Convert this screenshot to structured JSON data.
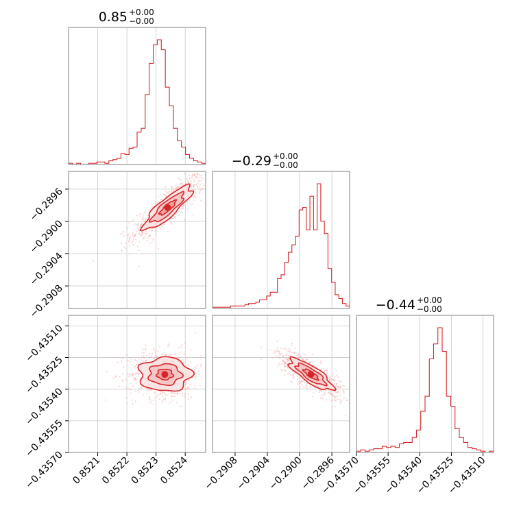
{
  "chart_data": {
    "type": "corner",
    "color": "#d62728",
    "contour_fill": "#f4b3b3",
    "grid": true,
    "parameters": [
      {
        "title": "0.85",
        "title_plus": "+0.00",
        "title_minus": "−0.00",
        "range": [
          0.852,
          0.85247
        ],
        "ticks": [
          0.8521,
          0.8522,
          0.8523,
          0.8524
        ],
        "tick_labels": [
          "0.8521",
          "0.8522",
          "0.8523",
          "0.8524"
        ],
        "hist": [
          0.01,
          0.0,
          0.01,
          0.0,
          0.0,
          0.01,
          0.01,
          0.02,
          0.02,
          0.01,
          0.03,
          0.04,
          0.05,
          0.09,
          0.08,
          0.13,
          0.14,
          0.26,
          0.29,
          0.56,
          0.81,
          0.96,
          1.0,
          0.92,
          0.62,
          0.47,
          0.29,
          0.19,
          0.14,
          0.08,
          0.05,
          0.03,
          0.02,
          0.01
        ]
      },
      {
        "title": "−0.29",
        "title_plus": "+0.00",
        "title_minus": "−0.00",
        "range": [
          -0.29108,
          -0.28938
        ],
        "ticks": [
          -0.2908,
          -0.2904,
          -0.29,
          -0.2896
        ],
        "tick_labels": [
          "−0.2908",
          "−0.2904",
          "−0.2900",
          "−0.2896"
        ],
        "hist": [
          0.01,
          0.01,
          0.01,
          0.01,
          0.01,
          0.02,
          0.02,
          0.02,
          0.02,
          0.03,
          0.04,
          0.04,
          0.05,
          0.07,
          0.07,
          0.1,
          0.13,
          0.13,
          0.24,
          0.27,
          0.37,
          0.45,
          0.51,
          0.58,
          0.79,
          0.81,
          0.63,
          0.9,
          0.63,
          1.0,
          0.7,
          0.6,
          0.32,
          0.21,
          0.11,
          0.08,
          0.04,
          0.02
        ]
      },
      {
        "title": "−0.44",
        "title_plus": "+0.00",
        "title_minus": "−0.00",
        "range": [
          -0.4357,
          -0.43505
        ],
        "ticks": [
          -0.4357,
          -0.43555,
          -0.4354,
          -0.43525,
          -0.4351
        ],
        "tick_labels": [
          "−0.43570",
          "−0.43555",
          "−0.43540",
          "−0.43525",
          "−0.43510"
        ],
        "hist": [
          0.01,
          0.02,
          0.01,
          0.02,
          0.03,
          0.03,
          0.05,
          0.04,
          0.05,
          0.04,
          0.07,
          0.08,
          0.08,
          0.12,
          0.18,
          0.33,
          0.45,
          0.75,
          0.87,
          1.0,
          0.81,
          0.45,
          0.37,
          0.19,
          0.12,
          0.08,
          0.04,
          0.03,
          0.02,
          0.01,
          0.0,
          0.01
        ]
      }
    ],
    "pairs": [
      {
        "x_param": 0,
        "y_param": 1,
        "mean": [
          0.85234,
          -0.28983
        ],
        "sd": [
          5.5e-05,
          0.00018
        ],
        "rho": 0.85,
        "levels": [
          0.5,
          1.0,
          1.5
        ]
      },
      {
        "x_param": 0,
        "y_param": 2,
        "mean": [
          0.85233,
          -0.43533
        ],
        "sd": [
          5.5e-05,
          5e-05
        ],
        "rho": 0.0,
        "levels": [
          0.5,
          1.0,
          1.6
        ]
      },
      {
        "x_param": 1,
        "y_param": 2,
        "mean": [
          -0.28986,
          -0.43533
        ],
        "sd": [
          0.00018,
          5e-05
        ],
        "rho": -0.8,
        "levels": [
          0.5,
          1.0,
          1.5
        ]
      }
    ]
  }
}
